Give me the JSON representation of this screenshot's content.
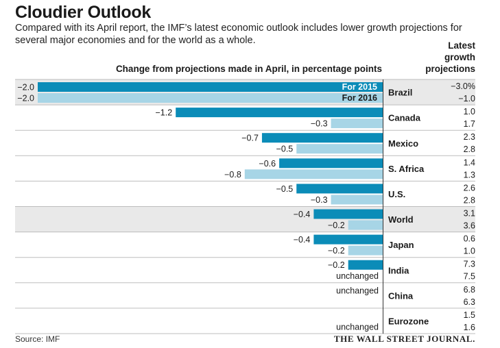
{
  "header": {
    "title": "Cloudier Outlook",
    "subtitle": "Compared with its April report, the IMF’s latest economic outlook includes lower growth projections for several major economies and for the world as a whole.",
    "axis_heading": "Change from projections made in April, in percentage points",
    "right_heading_lines": [
      "Latest",
      "growth",
      "projections"
    ]
  },
  "footer": {
    "source": "Source: IMF",
    "publisher": "THE WALL STREET JOURNAL."
  },
  "colors": {
    "series_2015": "#0b8cb8",
    "series_2016": "#a7d5e6",
    "row_highlight": "#e9e9e9",
    "rule": "#bdbdbd",
    "axis": "#333333"
  },
  "chart_data": {
    "type": "bar",
    "orientation": "horizontal",
    "categories": [
      "Brazil",
      "Canada",
      "Mexico",
      "S. Africa",
      "U.S.",
      "World",
      "Japan",
      "India",
      "China",
      "Eurozone"
    ],
    "highlight_rows": [
      "Brazil",
      "World"
    ],
    "unchanged_label": "unchanged",
    "series": [
      {
        "name": "For 2015",
        "values": [
          -2.0,
          -1.2,
          -0.7,
          -0.6,
          -0.5,
          -0.4,
          -0.4,
          -0.2,
          0,
          0
        ],
        "labels": [
          "−2.0",
          "−1.2",
          "−0.7",
          "−0.6",
          "−0.5",
          "−0.4",
          "−0.4",
          "−0.2",
          "unchanged",
          ""
        ],
        "projections": [
          "−3.0%",
          "1.0",
          "2.3",
          "1.4",
          "2.6",
          "3.1",
          "0.6",
          "7.3",
          "6.8",
          "1.5"
        ]
      },
      {
        "name": "For 2016",
        "values": [
          -2.0,
          -0.3,
          -0.5,
          -0.8,
          -0.3,
          -0.2,
          -0.2,
          0,
          0,
          0
        ],
        "labels": [
          "−2.0",
          "−0.3",
          "−0.5",
          "−0.8",
          "−0.3",
          "−0.2",
          "−0.2",
          "unchanged",
          "",
          "unchanged"
        ],
        "projections": [
          "−1.0",
          "1.7",
          "2.8",
          "1.3",
          "2.8",
          "3.6",
          "1.0",
          "7.5",
          "6.3",
          "1.6"
        ]
      }
    ],
    "xlim": [
      -2.0,
      0
    ]
  }
}
